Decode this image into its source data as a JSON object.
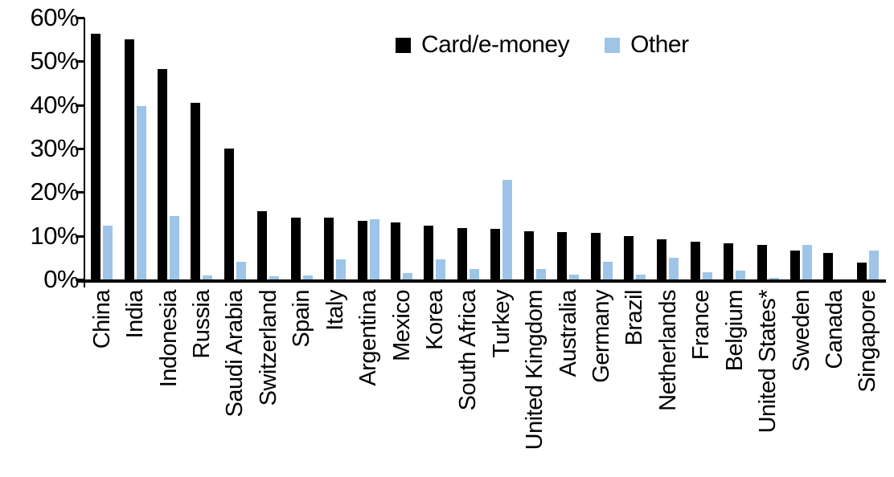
{
  "chart_data": {
    "type": "bar",
    "title": "",
    "xlabel": "",
    "ylabel": "",
    "ylim": [
      0,
      60
    ],
    "yticks": [
      0,
      10,
      20,
      30,
      40,
      50,
      60
    ],
    "ytick_labels": [
      "0%",
      "10%",
      "20%",
      "30%",
      "40%",
      "50%",
      "60%"
    ],
    "grid": false,
    "legend_position": "top-center",
    "categories": [
      "China",
      "India",
      "Indonesia",
      "Russia",
      "Saudi Arabia",
      "Switzerland",
      "Spain",
      "Italy",
      "Argentina",
      "Mexico",
      "Korea",
      "South Africa",
      "Turkey",
      "United Kingdom",
      "Australia",
      "Germany",
      "Brazil",
      "Netherlands",
      "France",
      "Belgium",
      "United States*",
      "Sweden",
      "Canada",
      "Singapore"
    ],
    "series": [
      {
        "name": "Card/e-money",
        "color": "#000000",
        "values": [
          56.4,
          55.0,
          48.3,
          40.5,
          30.0,
          15.7,
          14.2,
          14.2,
          13.4,
          13.0,
          12.3,
          11.8,
          11.6,
          11.1,
          10.8,
          10.6,
          10.0,
          9.3,
          8.7,
          8.2,
          7.9,
          6.6,
          6.1,
          3.9
        ]
      },
      {
        "name": "Other",
        "color": "#9EC4E7",
        "values": [
          12.3,
          39.8,
          14.5,
          1.0,
          4.0,
          0.8,
          1.0,
          4.6,
          13.9,
          1.4,
          4.7,
          2.4,
          22.9,
          2.4,
          1.1,
          4.0,
          1.2,
          4.9,
          1.6,
          2.1,
          0.3,
          8.0,
          0.0,
          6.6
        ]
      }
    ]
  }
}
